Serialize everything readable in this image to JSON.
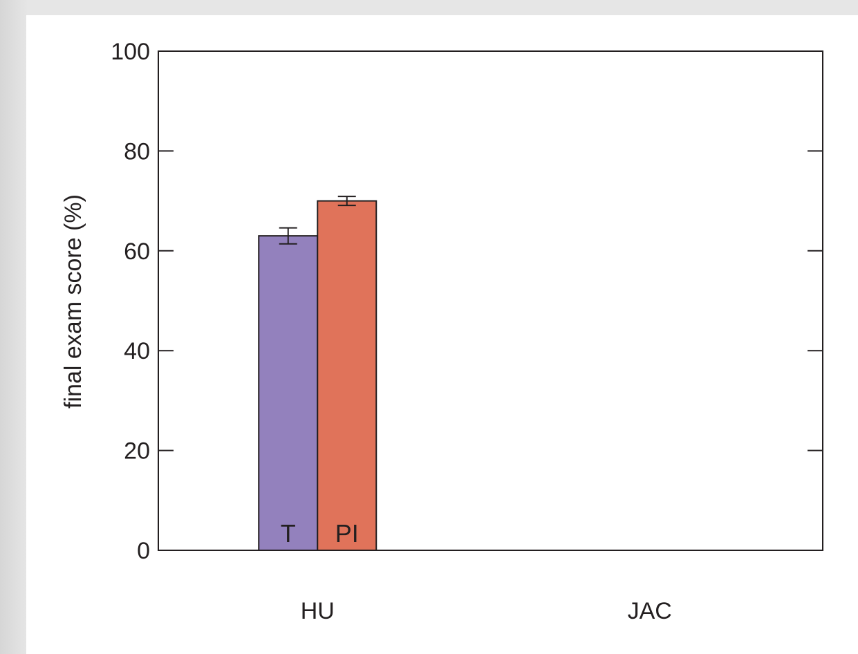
{
  "chart_data": {
    "type": "bar",
    "title": "",
    "xlabel": "",
    "ylabel": "final exam score (%)",
    "ylim": [
      0,
      100
    ],
    "yticks": [
      0,
      20,
      40,
      60,
      80,
      100
    ],
    "categories": [
      "HU",
      "JAC"
    ],
    "grid": false,
    "series": [
      {
        "name": "T",
        "values": [
          63,
          null
        ],
        "errors": [
          1.6,
          null
        ],
        "color": "#9381bd"
      },
      {
        "name": "PI",
        "values": [
          70,
          null
        ],
        "errors": [
          0.9,
          null
        ],
        "color": "#e0735a"
      }
    ]
  }
}
